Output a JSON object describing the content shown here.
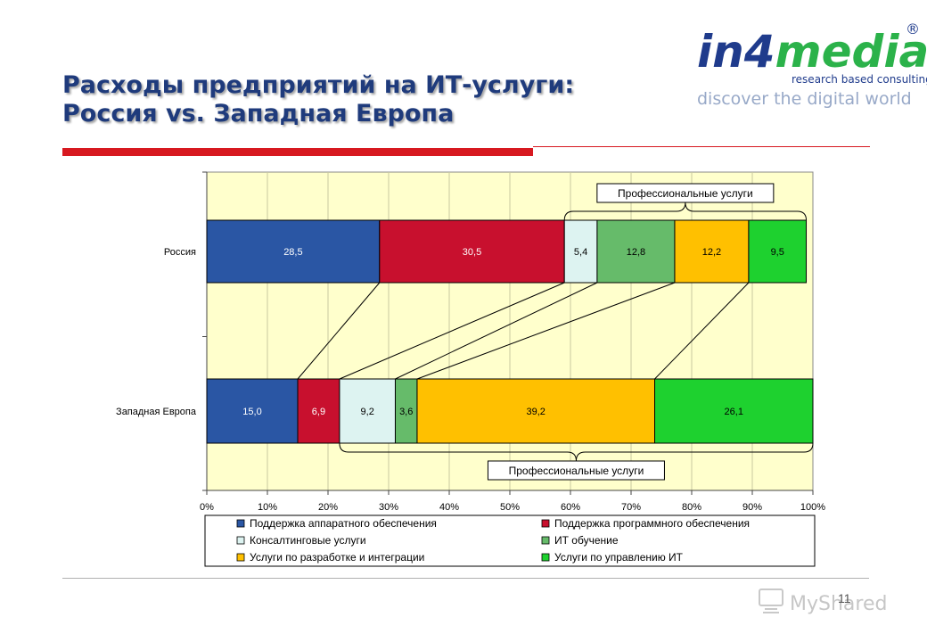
{
  "title": {
    "line1": "Расходы предприятий на ИТ-услуги:",
    "line2": "Россия vs. Западная Европа"
  },
  "logo": {
    "brand_part1": "in",
    "brand_part2": "4",
    "brand_part3": "media",
    "registered": "®",
    "tagline": "research based consulting",
    "slogan": "discover the digital world"
  },
  "page_number": "11",
  "watermark": "MyShared",
  "colors": {
    "title": "#1f3b7c",
    "accent_red": "#d71920",
    "plot_bg": "#ffffcc"
  },
  "chart_data": {
    "type": "bar",
    "orientation": "horizontal",
    "stacked": "percent",
    "categories": [
      "Россия",
      "Западная Европа"
    ],
    "series": [
      {
        "name": "Поддержка аппаратного обеспечения",
        "color": "#2a56a4",
        "values": [
          28.5,
          15.0
        ],
        "labels": [
          "28,5",
          "15,0"
        ],
        "label_color": "#ffffff"
      },
      {
        "name": "Поддержка программного обеспечения",
        "color": "#c8102e",
        "values": [
          30.5,
          6.9
        ],
        "labels": [
          "30,5",
          "6,9"
        ],
        "label_color": "#ffffff"
      },
      {
        "name": "Консалтинговые услуги",
        "color": "#ddf3f1",
        "values": [
          5.4,
          9.2
        ],
        "labels": [
          "5,4",
          "9,2"
        ],
        "label_color": "#000000"
      },
      {
        "name": "ИТ обучение",
        "color": "#66bb6a",
        "values": [
          12.8,
          3.6
        ],
        "labels": [
          "12,8",
          "3,6"
        ],
        "label_color": "#000000"
      },
      {
        "name": "Услуги по разработке и интеграции",
        "color": "#ffc000",
        "values": [
          12.2,
          39.2
        ],
        "labels": [
          "12,2",
          "39,2"
        ],
        "label_color": "#000000"
      },
      {
        "name": "Услуги по управлению ИТ",
        "color": "#1ed12f",
        "values": [
          9.5,
          26.1
        ],
        "labels": [
          "9,5",
          "26,1"
        ],
        "label_color": "#000000"
      }
    ],
    "x_ticks": [
      "0%",
      "10%",
      "20%",
      "30%",
      "40%",
      "50%",
      "60%",
      "70%",
      "80%",
      "90%",
      "100%"
    ],
    "xlim": [
      0,
      100
    ],
    "grid": true,
    "legend_position": "bottom",
    "annotations": [
      {
        "text": "Профессиональные услуги",
        "category": "Россия",
        "side": "top"
      },
      {
        "text": "Профессиональные услуги",
        "category": "Западная Европа",
        "side": "bottom"
      }
    ]
  }
}
